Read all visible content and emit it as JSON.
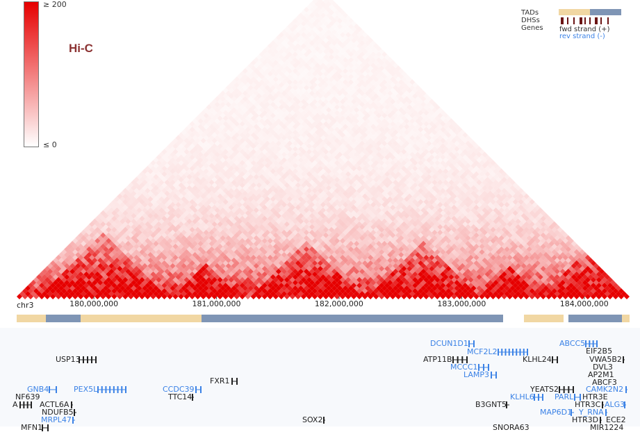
{
  "chart_data": {
    "type": "heatmap",
    "title": "Hi-C",
    "chromosome": "chr3",
    "x_range_bp": [
      179370000,
      184370000
    ],
    "x_ticks_bp": [
      180000000,
      181000000,
      182000000,
      183000000,
      184000000
    ],
    "x_tick_labels": [
      "180,000,000",
      "181,000,000",
      "182,000,000",
      "183,000,000",
      "184,000,000"
    ],
    "colorbar": {
      "max_label": "≥ 200",
      "min_label": "≤ 0",
      "max": 200,
      "min": 0
    },
    "tads": [
      {
        "start": 179370000,
        "end": 179610000,
        "group": "A"
      },
      {
        "start": 179610000,
        "end": 179890000,
        "group": "B"
      },
      {
        "start": 179890000,
        "end": 180880000,
        "group": "A"
      },
      {
        "start": 180880000,
        "end": 183340000,
        "group": "B"
      },
      {
        "start": 183510000,
        "end": 183830000,
        "group": "A"
      },
      {
        "start": 183870000,
        "end": 184310000,
        "group": "B"
      },
      {
        "start": 184310000,
        "end": 184370000,
        "group": "A"
      }
    ],
    "strong_blocks": [
      {
        "start": 179550000,
        "end": 180600000
      },
      {
        "start": 180620000,
        "end": 181200000
      },
      {
        "start": 181250000,
        "end": 182200000
      },
      {
        "start": 182200000,
        "end": 183150000
      },
      {
        "start": 183150000,
        "end": 183650000
      },
      {
        "start": 183650000,
        "end": 184370000
      }
    ]
  },
  "legend": {
    "tads": "TADs",
    "dhss": "DHSs",
    "genes": "Genes",
    "fwd": "fwd strand (+)",
    "rev": "rev strand (-)"
  },
  "colors": {
    "tad_a": "#f1d7a3",
    "tad_b": "#7f95b5",
    "dhs": "#6b1414",
    "fwd": "#222222",
    "rev": "#3b82e6",
    "hic": "#e60000",
    "label": "#8b3232"
  },
  "genes": [
    {
      "name": "USP13",
      "strand": "fwd"
    },
    {
      "name": "GNB4",
      "strand": "rev"
    },
    {
      "name": "PEX5L",
      "strand": "rev"
    },
    {
      "name": "CCDC39",
      "strand": "rev"
    },
    {
      "name": "FXR1",
      "strand": "fwd"
    },
    {
      "name": "TTC14",
      "strand": "fwd"
    },
    {
      "name": "NF639",
      "strand": "fwd"
    },
    {
      "name": "ACTL6A",
      "strand": "fwd"
    },
    {
      "name": "A",
      "strand": "fwd"
    },
    {
      "name": "NDUFB5",
      "strand": "fwd"
    },
    {
      "name": "MRPL47",
      "strand": "rev"
    },
    {
      "name": "MFN1",
      "strand": "fwd"
    },
    {
      "name": "SOX2",
      "strand": "fwd"
    },
    {
      "name": "DCUN1D1",
      "strand": "rev"
    },
    {
      "name": "MCF2L2",
      "strand": "rev"
    },
    {
      "name": "ATP11B",
      "strand": "fwd"
    },
    {
      "name": "MCCC1",
      "strand": "rev"
    },
    {
      "name": "LAMP3",
      "strand": "rev"
    },
    {
      "name": "KLHL24",
      "strand": "fwd"
    },
    {
      "name": "B3GNT5",
      "strand": "fwd"
    },
    {
      "name": "KLHL6",
      "strand": "rev"
    },
    {
      "name": "YEATS2",
      "strand": "fwd"
    },
    {
      "name": "PARL",
      "strand": "rev"
    },
    {
      "name": "MAP6D1",
      "strand": "rev"
    },
    {
      "name": "Y_RNA",
      "strand": "rev"
    },
    {
      "name": "ABCC5",
      "strand": "rev"
    },
    {
      "name": "EIF2B5",
      "strand": "fwd"
    },
    {
      "name": "VWA5B2",
      "strand": "fwd"
    },
    {
      "name": "DVL3",
      "strand": "fwd"
    },
    {
      "name": "AP2M1",
      "strand": "fwd"
    },
    {
      "name": "ABCF3",
      "strand": "fwd"
    },
    {
      "name": "CAMK2N2",
      "strand": "rev"
    },
    {
      "name": "HTR3E",
      "strand": "fwd"
    },
    {
      "name": "HTR3C",
      "strand": "fwd"
    },
    {
      "name": "ALG3",
      "strand": "rev"
    },
    {
      "name": "HTR3D",
      "strand": "fwd"
    },
    {
      "name": "ECE2",
      "strand": "fwd"
    },
    {
      "name": "SNORA63",
      "strand": "fwd"
    },
    {
      "name": "MIR1224",
      "strand": "fwd"
    }
  ]
}
